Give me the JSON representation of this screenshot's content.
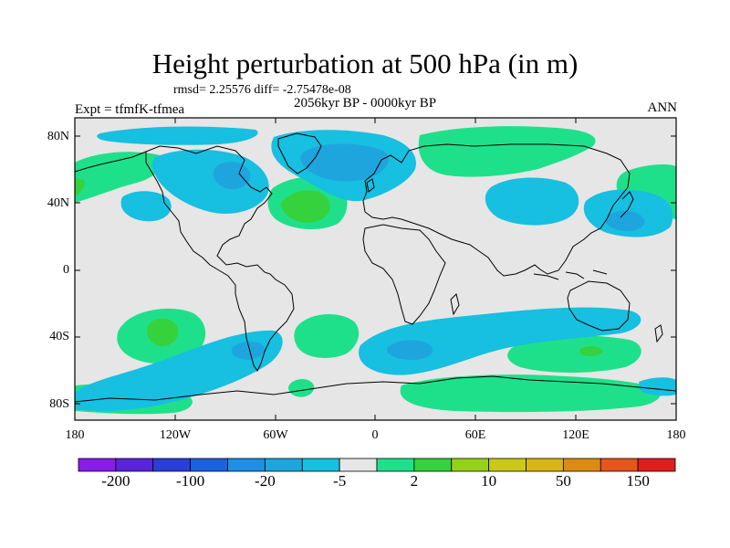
{
  "title": "Height perturbation at 500 hPa (in m)",
  "stats_line": "rmsd= 2.25576 diff= -2.75478e-08",
  "period": "2056kyr BP - 0000kyr BP",
  "experiment": "Expt = tfmfK-tfmea",
  "season": "ANN",
  "lat_ticks": [
    "80N",
    "40N",
    "0",
    "40S",
    "80S"
  ],
  "lon_ticks": [
    "180",
    "120W",
    "60W",
    "0",
    "60E",
    "120E",
    "180"
  ],
  "colorbar": {
    "colors": [
      "#8b1ce8",
      "#5a25d8",
      "#2a3fd6",
      "#1a63de",
      "#1e8ee6",
      "#1ea5de",
      "#17bfe0",
      "#e6e6e6",
      "#1fe08a",
      "#36d23d",
      "#95d11b",
      "#c9c91c",
      "#d9b417",
      "#dd8a15",
      "#e4561a",
      "#e01e1e"
    ],
    "labels": [
      "-200",
      "-100",
      "-20",
      "-5",
      "2",
      "10",
      "50",
      "150"
    ]
  },
  "field_colors": {
    "background": "#e6e6e6",
    "light_negative": "#17bfe0",
    "medium_negative": "#1ea5de",
    "light_positive": "#1fe08a",
    "medium_positive": "#36d23d",
    "coast": "#000000"
  }
}
